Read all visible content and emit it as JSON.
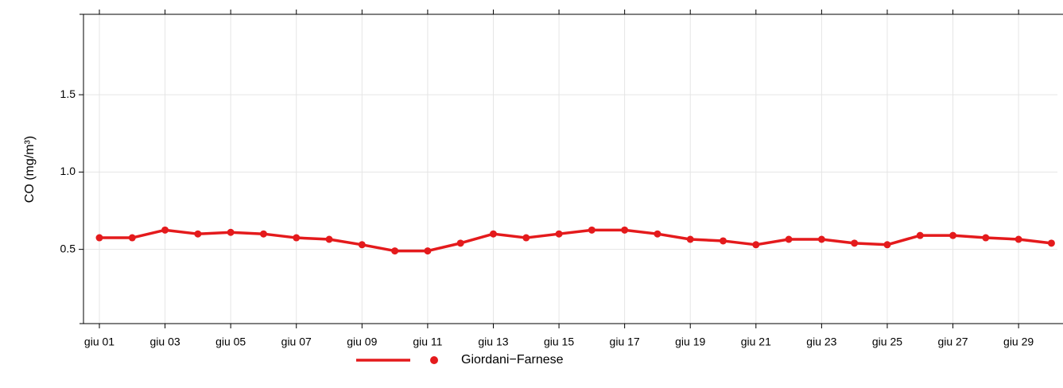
{
  "chart_data": {
    "type": "line",
    "y_label": "CO (mg/m³)",
    "categories": [
      "giu 01",
      null,
      "giu 03",
      null,
      "giu 05",
      null,
      "giu 07",
      null,
      "giu 09",
      null,
      "giu 11",
      null,
      "giu 13",
      null,
      "giu 15",
      null,
      "giu 17",
      null,
      "giu 19",
      null,
      "giu 21",
      null,
      "giu 23",
      null,
      "giu 25",
      null,
      "giu 27",
      null,
      "giu 29",
      null
    ],
    "series": [
      {
        "name": "Giordani−Farnese",
        "color": "#e41a1c",
        "values": [
          0.575,
          0.575,
          0.625,
          0.6,
          0.61,
          0.6,
          0.575,
          0.565,
          0.53,
          0.49,
          0.49,
          0.54,
          0.6,
          0.575,
          0.6,
          0.625,
          0.625,
          0.6,
          0.565,
          0.555,
          0.53,
          0.565,
          0.565,
          0.54,
          0.53,
          0.59,
          0.59,
          0.575,
          0.565,
          0.54
        ]
      }
    ],
    "ylim": [
      0.02,
      2.02
    ],
    "yticks": [
      0.5,
      {
        "value": 1,
        "label": "1.0"
      },
      1.5
    ],
    "grid": true,
    "legend": "bottom"
  }
}
